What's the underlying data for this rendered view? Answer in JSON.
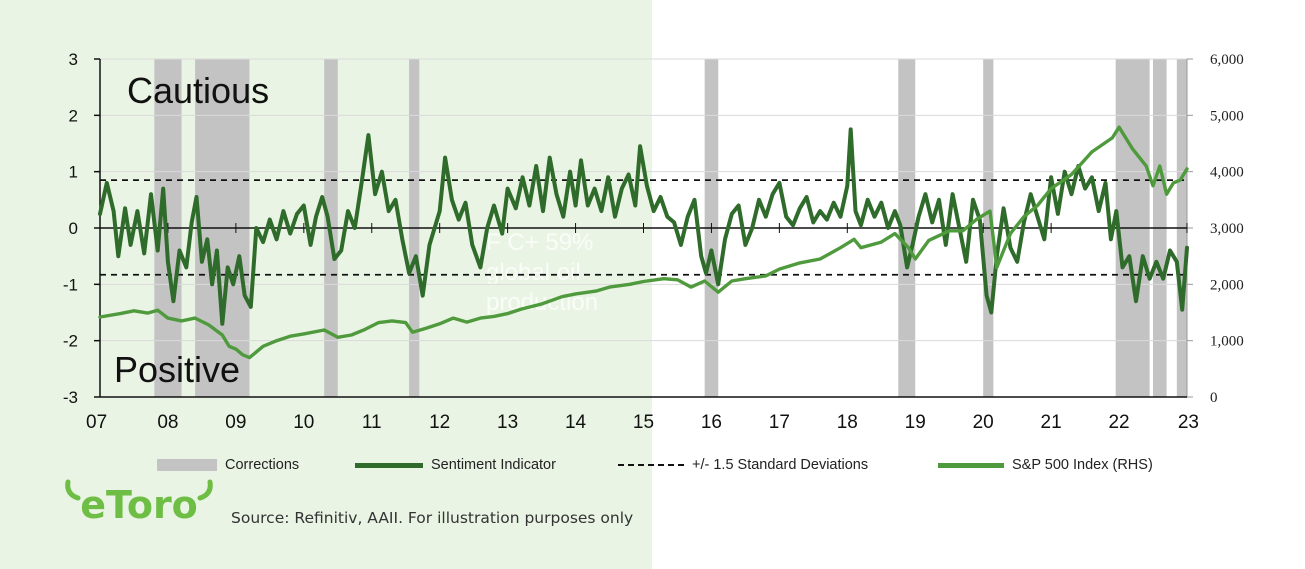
{
  "chart_data": {
    "type": "line",
    "annotations": {
      "top": "Cautious",
      "bottom": "Positive"
    },
    "left_axis": {
      "range": [
        -3,
        3
      ],
      "ticks": [
        "3",
        "2",
        "1",
        "0",
        "-1",
        "-2",
        "-3"
      ]
    },
    "right_axis": {
      "label": "S&P 500 Index (RHS)",
      "range": [
        0,
        6000
      ],
      "ticks": [
        "6,000",
        "5,000",
        "4,000",
        "3,000",
        "2,000",
        "1,000",
        "0"
      ]
    },
    "x_axis": {
      "range": [
        2007,
        2023
      ],
      "tick_labels": [
        "07",
        "08",
        "09",
        "10",
        "11",
        "12",
        "13",
        "14",
        "15",
        "16",
        "17",
        "18",
        "19",
        "20",
        "21",
        "22",
        "23"
      ]
    },
    "std_band": [
      0.85,
      -0.83
    ],
    "corrections": [
      [
        2007.8,
        2008.2
      ],
      [
        2008.4,
        2009.2
      ],
      [
        2010.3,
        2010.5
      ],
      [
        2011.55,
        2011.7
      ],
      [
        2015.9,
        2016.1
      ],
      [
        2018.75,
        2019.0
      ],
      [
        2020.0,
        2020.15
      ],
      [
        2021.95,
        2022.45
      ],
      [
        2022.5,
        2022.7
      ],
      [
        2022.85,
        2023.0
      ]
    ],
    "series": [
      {
        "name": "Sentiment Indicator",
        "axis": "left",
        "color": "#2f6b2a",
        "points": [
          [
            2007.0,
            0.25
          ],
          [
            2007.1,
            0.8
          ],
          [
            2007.2,
            0.3
          ],
          [
            2007.27,
            -0.5
          ],
          [
            2007.37,
            0.35
          ],
          [
            2007.45,
            -0.3
          ],
          [
            2007.55,
            0.3
          ],
          [
            2007.65,
            -0.45
          ],
          [
            2007.75,
            0.6
          ],
          [
            2007.85,
            -0.4
          ],
          [
            2007.93,
            0.7
          ],
          [
            2008.0,
            -0.6
          ],
          [
            2008.08,
            -1.3
          ],
          [
            2008.17,
            -0.4
          ],
          [
            2008.27,
            -0.7
          ],
          [
            2008.35,
            0.1
          ],
          [
            2008.42,
            0.55
          ],
          [
            2008.5,
            -0.6
          ],
          [
            2008.58,
            -0.2
          ],
          [
            2008.65,
            -1.0
          ],
          [
            2008.72,
            -0.4
          ],
          [
            2008.8,
            -1.7
          ],
          [
            2008.88,
            -0.7
          ],
          [
            2008.96,
            -1.0
          ],
          [
            2009.05,
            -0.5
          ],
          [
            2009.13,
            -1.2
          ],
          [
            2009.22,
            -1.4
          ],
          [
            2009.3,
            0.0
          ],
          [
            2009.4,
            -0.25
          ],
          [
            2009.5,
            0.15
          ],
          [
            2009.6,
            -0.2
          ],
          [
            2009.7,
            0.3
          ],
          [
            2009.8,
            -0.1
          ],
          [
            2009.9,
            0.25
          ],
          [
            2010.0,
            0.4
          ],
          [
            2010.1,
            -0.3
          ],
          [
            2010.18,
            0.2
          ],
          [
            2010.27,
            0.55
          ],
          [
            2010.35,
            0.2
          ],
          [
            2010.45,
            -0.55
          ],
          [
            2010.55,
            -0.4
          ],
          [
            2010.65,
            0.3
          ],
          [
            2010.75,
            0.0
          ],
          [
            2010.85,
            0.8
          ],
          [
            2010.95,
            1.65
          ],
          [
            2011.05,
            0.6
          ],
          [
            2011.15,
            1.0
          ],
          [
            2011.25,
            0.3
          ],
          [
            2011.35,
            0.5
          ],
          [
            2011.45,
            -0.2
          ],
          [
            2011.55,
            -0.8
          ],
          [
            2011.65,
            -0.5
          ],
          [
            2011.75,
            -1.2
          ],
          [
            2011.85,
            -0.3
          ],
          [
            2012.0,
            0.3
          ],
          [
            2012.08,
            1.25
          ],
          [
            2012.18,
            0.5
          ],
          [
            2012.28,
            0.15
          ],
          [
            2012.38,
            0.45
          ],
          [
            2012.48,
            -0.3
          ],
          [
            2012.6,
            -0.7
          ],
          [
            2012.7,
            0.0
          ],
          [
            2012.8,
            0.4
          ],
          [
            2012.92,
            -0.1
          ],
          [
            2013.0,
            0.7
          ],
          [
            2013.12,
            0.35
          ],
          [
            2013.22,
            0.9
          ],
          [
            2013.32,
            0.4
          ],
          [
            2013.42,
            1.1
          ],
          [
            2013.52,
            0.3
          ],
          [
            2013.62,
            1.25
          ],
          [
            2013.72,
            0.6
          ],
          [
            2013.82,
            0.2
          ],
          [
            2013.92,
            1.0
          ],
          [
            2014.0,
            0.4
          ],
          [
            2014.08,
            1.2
          ],
          [
            2014.18,
            0.4
          ],
          [
            2014.28,
            0.7
          ],
          [
            2014.38,
            0.3
          ],
          [
            2014.48,
            0.9
          ],
          [
            2014.58,
            0.2
          ],
          [
            2014.68,
            0.7
          ],
          [
            2014.78,
            0.95
          ],
          [
            2014.88,
            0.4
          ],
          [
            2014.95,
            1.45
          ],
          [
            2015.05,
            0.75
          ],
          [
            2015.15,
            0.3
          ],
          [
            2015.25,
            0.55
          ],
          [
            2015.35,
            0.2
          ],
          [
            2015.45,
            0.1
          ],
          [
            2015.55,
            -0.3
          ],
          [
            2015.65,
            0.2
          ],
          [
            2015.75,
            0.5
          ],
          [
            2015.85,
            -0.5
          ],
          [
            2015.92,
            -0.8
          ],
          [
            2016.0,
            -0.4
          ],
          [
            2016.1,
            -1.0
          ],
          [
            2016.2,
            -0.2
          ],
          [
            2016.3,
            0.25
          ],
          [
            2016.4,
            0.4
          ],
          [
            2016.5,
            -0.3
          ],
          [
            2016.6,
            0.0
          ],
          [
            2016.7,
            0.5
          ],
          [
            2016.8,
            0.2
          ],
          [
            2016.9,
            0.6
          ],
          [
            2017.0,
            0.8
          ],
          [
            2017.1,
            0.2
          ],
          [
            2017.2,
            0.05
          ],
          [
            2017.3,
            0.35
          ],
          [
            2017.4,
            0.55
          ],
          [
            2017.5,
            0.1
          ],
          [
            2017.6,
            0.3
          ],
          [
            2017.7,
            0.15
          ],
          [
            2017.8,
            0.45
          ],
          [
            2017.9,
            0.2
          ],
          [
            2018.0,
            0.75
          ],
          [
            2018.05,
            1.75
          ],
          [
            2018.12,
            0.3
          ],
          [
            2018.2,
            0.05
          ],
          [
            2018.3,
            0.5
          ],
          [
            2018.4,
            0.2
          ],
          [
            2018.5,
            0.45
          ],
          [
            2018.6,
            0.0
          ],
          [
            2018.7,
            0.3
          ],
          [
            2018.78,
            0.05
          ],
          [
            2018.88,
            -0.7
          ],
          [
            2018.96,
            -0.3
          ],
          [
            2019.05,
            0.2
          ],
          [
            2019.15,
            0.6
          ],
          [
            2019.25,
            0.1
          ],
          [
            2019.35,
            0.5
          ],
          [
            2019.45,
            -0.3
          ],
          [
            2019.55,
            0.6
          ],
          [
            2019.65,
            0.0
          ],
          [
            2019.75,
            -0.6
          ],
          [
            2019.85,
            0.5
          ],
          [
            2019.95,
            0.15
          ],
          [
            2020.05,
            -1.2
          ],
          [
            2020.12,
            -1.5
          ],
          [
            2020.2,
            -0.5
          ],
          [
            2020.3,
            0.35
          ],
          [
            2020.4,
            -0.35
          ],
          [
            2020.5,
            -0.6
          ],
          [
            2020.6,
            0.1
          ],
          [
            2020.7,
            0.6
          ],
          [
            2020.8,
            0.2
          ],
          [
            2020.9,
            -0.2
          ],
          [
            2021.0,
            0.9
          ],
          [
            2021.1,
            0.25
          ],
          [
            2021.2,
            1.0
          ],
          [
            2021.3,
            0.6
          ],
          [
            2021.4,
            1.1
          ],
          [
            2021.5,
            0.7
          ],
          [
            2021.6,
            0.9
          ],
          [
            2021.7,
            0.3
          ],
          [
            2021.8,
            0.8
          ],
          [
            2021.88,
            -0.2
          ],
          [
            2021.96,
            0.3
          ],
          [
            2022.05,
            -0.7
          ],
          [
            2022.15,
            -0.5
          ],
          [
            2022.25,
            -1.3
          ],
          [
            2022.35,
            -0.5
          ],
          [
            2022.45,
            -0.9
          ],
          [
            2022.55,
            -0.6
          ],
          [
            2022.65,
            -0.9
          ],
          [
            2022.75,
            -0.4
          ],
          [
            2022.85,
            -0.6
          ],
          [
            2022.93,
            -1.45
          ],
          [
            2023.0,
            -0.35
          ]
        ]
      },
      {
        "name": "S&P 500 Index (RHS)",
        "axis": "right",
        "color": "#4f9a3d",
        "points": [
          [
            2007.0,
            1420
          ],
          [
            2007.3,
            1480
          ],
          [
            2007.5,
            1530
          ],
          [
            2007.7,
            1490
          ],
          [
            2007.85,
            1540
          ],
          [
            2008.0,
            1400
          ],
          [
            2008.2,
            1350
          ],
          [
            2008.4,
            1400
          ],
          [
            2008.6,
            1280
          ],
          [
            2008.8,
            1100
          ],
          [
            2008.9,
            900
          ],
          [
            2009.0,
            850
          ],
          [
            2009.1,
            750
          ],
          [
            2009.2,
            700
          ],
          [
            2009.4,
            900
          ],
          [
            2009.6,
            1000
          ],
          [
            2009.8,
            1080
          ],
          [
            2010.0,
            1120
          ],
          [
            2010.3,
            1190
          ],
          [
            2010.5,
            1060
          ],
          [
            2010.7,
            1100
          ],
          [
            2010.9,
            1200
          ],
          [
            2011.1,
            1320
          ],
          [
            2011.3,
            1350
          ],
          [
            2011.5,
            1320
          ],
          [
            2011.6,
            1150
          ],
          [
            2011.8,
            1220
          ],
          [
            2012.0,
            1300
          ],
          [
            2012.2,
            1400
          ],
          [
            2012.4,
            1330
          ],
          [
            2012.6,
            1400
          ],
          [
            2012.8,
            1430
          ],
          [
            2013.0,
            1480
          ],
          [
            2013.2,
            1560
          ],
          [
            2013.5,
            1650
          ],
          [
            2013.8,
            1780
          ],
          [
            2014.0,
            1830
          ],
          [
            2014.3,
            1880
          ],
          [
            2014.5,
            1950
          ],
          [
            2014.8,
            2000
          ],
          [
            2015.0,
            2050
          ],
          [
            2015.3,
            2100
          ],
          [
            2015.5,
            2080
          ],
          [
            2015.7,
            1950
          ],
          [
            2015.9,
            2060
          ],
          [
            2016.1,
            1860
          ],
          [
            2016.3,
            2060
          ],
          [
            2016.5,
            2100
          ],
          [
            2016.8,
            2150
          ],
          [
            2017.0,
            2270
          ],
          [
            2017.3,
            2380
          ],
          [
            2017.6,
            2450
          ],
          [
            2017.9,
            2650
          ],
          [
            2018.1,
            2800
          ],
          [
            2018.2,
            2650
          ],
          [
            2018.5,
            2750
          ],
          [
            2018.7,
            2900
          ],
          [
            2018.9,
            2650
          ],
          [
            2019.0,
            2450
          ],
          [
            2019.2,
            2780
          ],
          [
            2019.5,
            2950
          ],
          [
            2019.7,
            2950
          ],
          [
            2019.9,
            3150
          ],
          [
            2020.1,
            3300
          ],
          [
            2020.2,
            2300
          ],
          [
            2020.4,
            2900
          ],
          [
            2020.6,
            3200
          ],
          [
            2020.8,
            3400
          ],
          [
            2021.0,
            3700
          ],
          [
            2021.3,
            3950
          ],
          [
            2021.6,
            4350
          ],
          [
            2021.9,
            4600
          ],
          [
            2022.0,
            4790
          ],
          [
            2022.2,
            4400
          ],
          [
            2022.4,
            4100
          ],
          [
            2022.5,
            3750
          ],
          [
            2022.6,
            4100
          ],
          [
            2022.7,
            3600
          ],
          [
            2022.8,
            3800
          ],
          [
            2022.9,
            3850
          ],
          [
            2023.0,
            4050
          ]
        ]
      }
    ]
  },
  "legend": [
    {
      "label": "Corrections"
    },
    {
      "label": "Sentiment Indicator"
    },
    {
      "label": "+/- 1.5 Standard Deviations"
    },
    {
      "label": "S&P 500 Index (RHS)"
    }
  ],
  "brand": {
    "logo_text": "eToro",
    "color": "#6ebe45"
  },
  "source": "Source: Refinitiv, AAII. For illustration purposes only",
  "watermark": "F  C+ 59%\nglobal oil\nproduction"
}
